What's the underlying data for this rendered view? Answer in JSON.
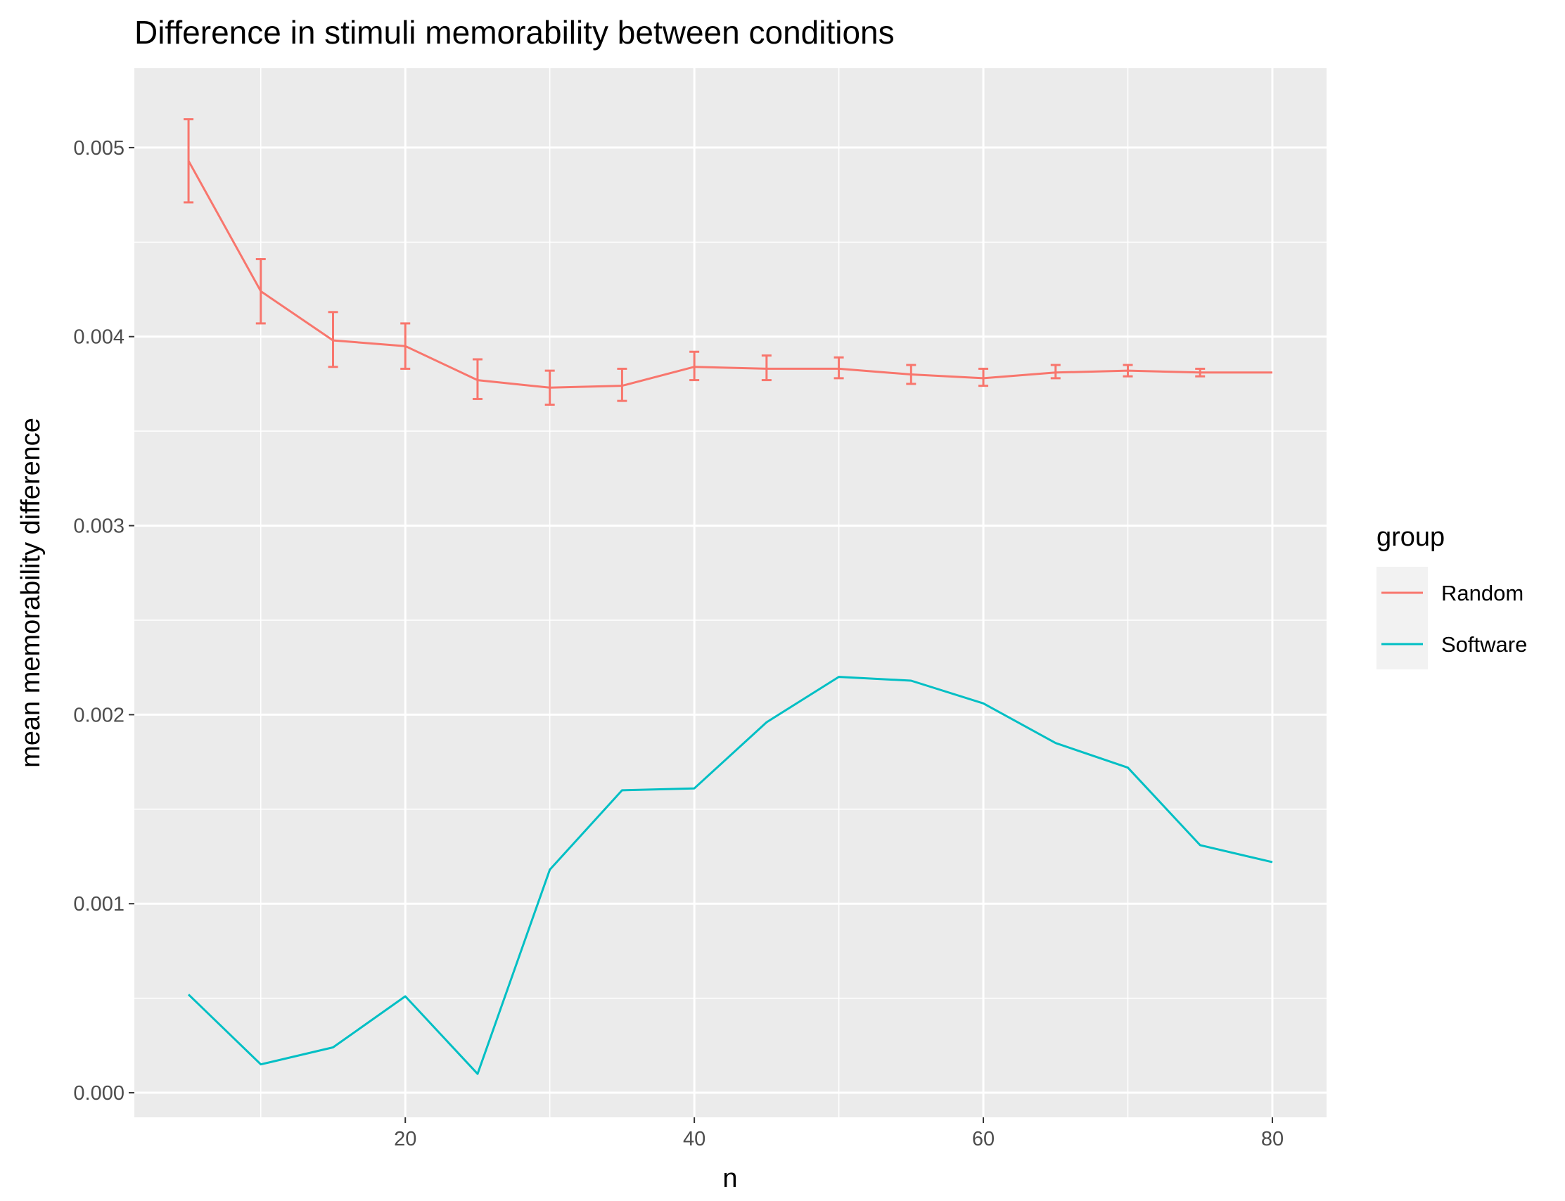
{
  "chart_data": {
    "type": "line",
    "title": "Difference in stimuli memorability between conditions",
    "xlabel": "n",
    "ylabel": "mean memorability difference",
    "xlim": [
      1.25,
      83.75
    ],
    "ylim": [
      -0.00013,
      0.00542
    ],
    "x_ticks": [
      20,
      40,
      60,
      80
    ],
    "x_tick_labels": [
      "20",
      "40",
      "60",
      "80"
    ],
    "y_ticks": [
      0,
      0.001,
      0.002,
      0.003,
      0.004,
      0.005
    ],
    "y_tick_labels": [
      "0.000",
      "0.001",
      "0.002",
      "0.003",
      "0.004",
      "0.005"
    ],
    "grid": true,
    "legend": {
      "title": "group",
      "position": "right"
    },
    "x": [
      5,
      10,
      15,
      20,
      25,
      30,
      35,
      40,
      45,
      50,
      55,
      60,
      65,
      70,
      75,
      80
    ],
    "series": [
      {
        "name": "Random",
        "color": "#F8766D",
        "values": [
          0.00493,
          0.00424,
          0.00398,
          0.00395,
          0.00377,
          0.00373,
          0.00374,
          0.00384,
          0.00383,
          0.00383,
          0.0038,
          0.00378,
          0.00381,
          0.00382,
          0.00381,
          0.00381
        ],
        "error_low": [
          0.00471,
          0.00407,
          0.00384,
          0.00383,
          0.00367,
          0.00364,
          0.00366,
          0.00377,
          0.00377,
          0.00378,
          0.00375,
          0.00374,
          0.00378,
          0.00379,
          0.00379,
          0.00381
        ],
        "error_high": [
          0.00515,
          0.00441,
          0.00413,
          0.00407,
          0.00388,
          0.00382,
          0.00383,
          0.00392,
          0.0039,
          0.00389,
          0.00385,
          0.00383,
          0.00385,
          0.00385,
          0.00383,
          0.00381
        ]
      },
      {
        "name": "Software",
        "color": "#00BFC4",
        "values": [
          0.00052,
          0.00015,
          0.00024,
          0.00051,
          0.0001,
          0.00118,
          0.0016,
          0.00161,
          0.00196,
          0.0022,
          0.00218,
          0.00206,
          0.00185,
          0.00172,
          0.00131,
          0.00122
        ]
      }
    ]
  }
}
